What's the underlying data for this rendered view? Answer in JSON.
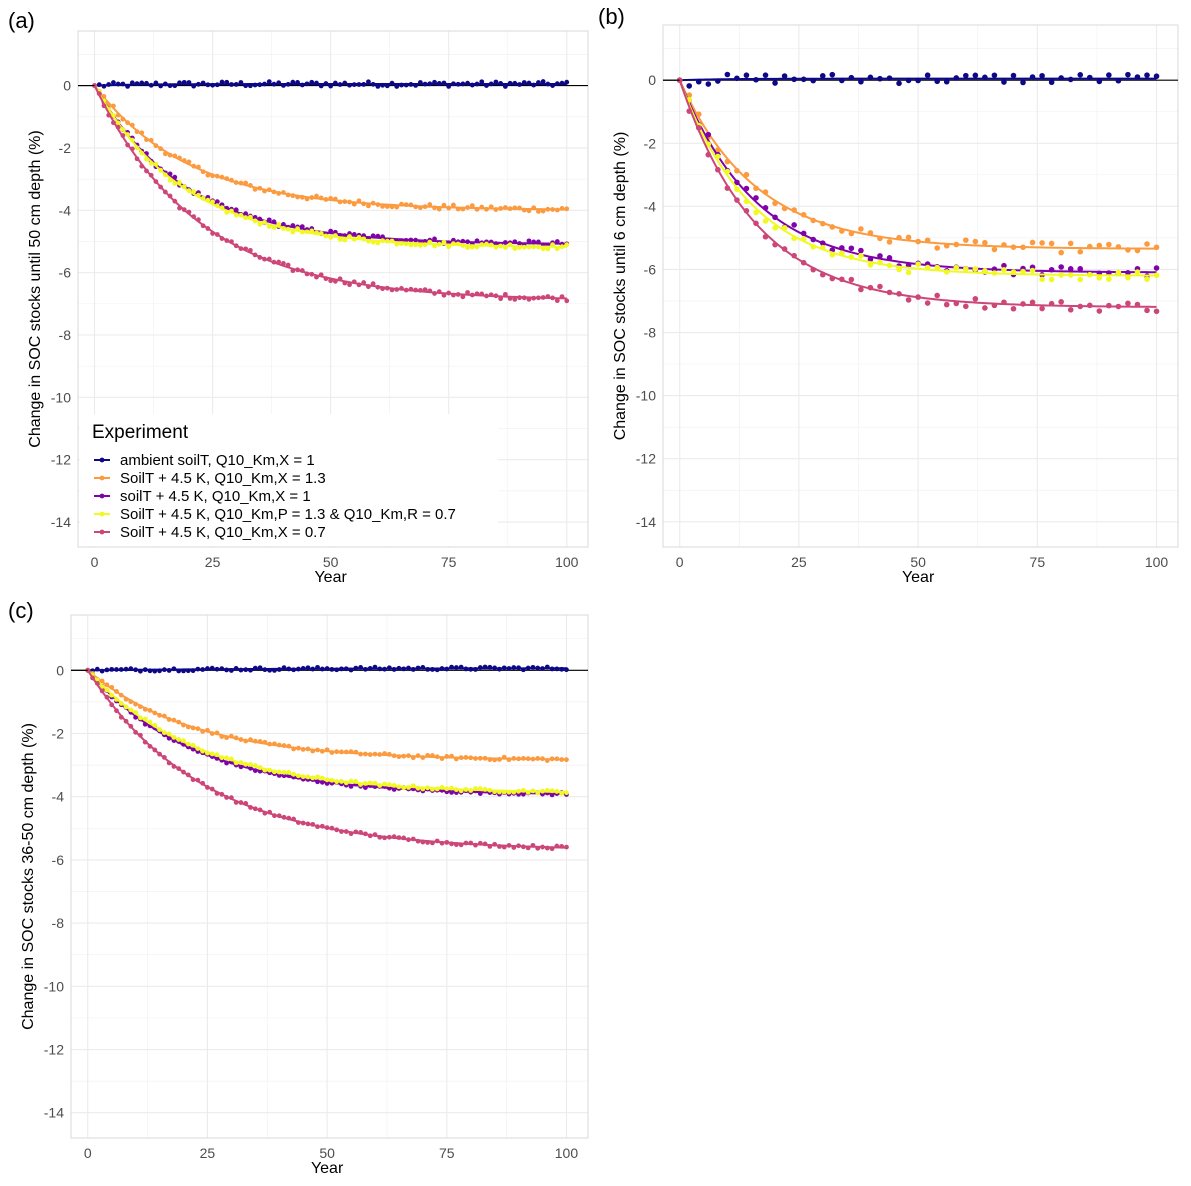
{
  "figure": {
    "legend": {
      "title": "Experiment",
      "entries": [
        {
          "label": "ambient soilT, Q10_Km,X = 1",
          "color": "#0d0887"
        },
        {
          "label": "SoilT + 4.5 K, Q10_Km,X = 1.3",
          "color": "#fb9a3f"
        },
        {
          "label": "soilT + 4.5 K, Q10_Km,X = 1",
          "color": "#7e03a8"
        },
        {
          "label": "SoilT + 4.5 K, Q10_Km,P = 1.3 & Q10_Km,R = 0.7",
          "color": "#f0f921"
        },
        {
          "label": "SoilT + 4.5 K, Q10_Km,X = 0.7",
          "color": "#cc4778"
        }
      ]
    }
  },
  "chart_data": [
    {
      "type": "line",
      "panel": "(a)",
      "title": "",
      "xlabel": "Year",
      "ylabel": "Change in SOC stocks until 50 cm depth (%)",
      "xlim": [
        -3.5,
        104.5
      ],
      "ylim": [
        -14.8,
        1.75
      ],
      "xticks": [
        0,
        25,
        50,
        75,
        100
      ],
      "yticks": [
        0,
        -2,
        -4,
        -6,
        -8,
        -10,
        -12,
        -14
      ],
      "grid": true,
      "legend_position": "bottom-left",
      "hline": 0,
      "point_step_years": 1,
      "series": [
        {
          "name": "ambient soilT, Q10_Km,X = 1",
          "color": "#0d0887",
          "asymptote": 0.05,
          "tau_years": 10,
          "noise": 0.05,
          "summary": {
            "0": 0,
            "25": 0.05,
            "50": 0.05,
            "75": 0.05,
            "100": 0.05
          }
        },
        {
          "name": "SoilT + 4.5 K, Q10_Km,X = 1.3",
          "color": "#fb9a3f",
          "asymptote": -4.0,
          "tau_years": 20,
          "noise": 0.05,
          "summary": {
            "0": 0,
            "25": -2.85,
            "50": -3.7,
            "75": -3.9,
            "100": -4.0
          }
        },
        {
          "name": "soilT + 4.5 K, Q10_Km,X = 1",
          "color": "#7e03a8",
          "asymptote": -5.1,
          "tau_years": 19,
          "noise": 0.05,
          "summary": {
            "0": 0,
            "25": -3.7,
            "50": -4.7,
            "75": -5.0,
            "100": -5.1
          }
        },
        {
          "name": "SoilT + 4.5 K, Q10_Km,P = 1.3 & Q10_Km,R = 0.7",
          "color": "#f0f921",
          "asymptote": -5.2,
          "tau_years": 19,
          "noise": 0.05,
          "summary": {
            "0": 0,
            "25": -3.8,
            "50": -4.8,
            "75": -5.1,
            "100": -5.2
          }
        },
        {
          "name": "SoilT + 4.5 K, Q10_Km,X = 0.7",
          "color": "#cc4778",
          "asymptote": -6.9,
          "tau_years": 22,
          "noise": 0.05,
          "summary": {
            "0": 0,
            "25": -4.6,
            "50": -6.2,
            "75": -6.6,
            "100": -6.8
          }
        }
      ]
    },
    {
      "type": "line",
      "panel": "(b)",
      "title": "",
      "xlabel": "Year",
      "ylabel": "Change in SOC stocks until 6 cm depth (%)",
      "xlim": [
        -3.5,
        104.5
      ],
      "ylim": [
        -14.8,
        1.75
      ],
      "xticks": [
        0,
        25,
        50,
        75,
        100
      ],
      "yticks": [
        0,
        -2,
        -4,
        -6,
        -8,
        -10,
        -12,
        -14
      ],
      "grid": true,
      "hline": 0,
      "point_step_years": 2,
      "series": [
        {
          "name": "ambient soilT, Q10_Km,X = 1",
          "color": "#0d0887",
          "asymptote": 0.05,
          "tau_years": 10,
          "noise": 0.12,
          "summary": {
            "0": 0,
            "25": 0.05,
            "50": 0.05,
            "75": 0.05,
            "100": 0.0
          }
        },
        {
          "name": "SoilT + 4.5 K, Q10_Km,X = 1.3",
          "color": "#fb9a3f",
          "asymptote": -5.35,
          "tau_years": 16,
          "noise": 0.12,
          "summary": {
            "0": 0,
            "25": -4.2,
            "50": -5.1,
            "75": -5.3,
            "100": -5.4
          }
        },
        {
          "name": "soilT + 4.5 K, Q10_Km,X = 1",
          "color": "#7e03a8",
          "asymptote": -6.1,
          "tau_years": 16,
          "noise": 0.12,
          "summary": {
            "0": 0,
            "25": -4.8,
            "50": -5.8,
            "75": -6.0,
            "100": -6.1
          }
        },
        {
          "name": "SoilT + 4.5 K, Q10_Km,P = 1.3 & Q10_Km,R = 0.7",
          "color": "#f0f921",
          "asymptote": -6.2,
          "tau_years": 15,
          "noise": 0.12,
          "summary": {
            "0": 0,
            "25": -5.0,
            "50": -6.0,
            "75": -6.1,
            "100": -6.2
          }
        },
        {
          "name": "SoilT + 4.5 K, Q10_Km,X = 0.7",
          "color": "#cc4778",
          "asymptote": -7.2,
          "tau_years": 16,
          "noise": 0.12,
          "summary": {
            "0": 0,
            "25": -5.6,
            "50": -6.8,
            "75": -7.1,
            "100": -7.2
          }
        }
      ]
    },
    {
      "type": "line",
      "panel": "(c)",
      "title": "",
      "xlabel": "Year",
      "ylabel": "Change in SOC stocks 36-50 cm depth (%)",
      "xlim": [
        -3.5,
        104.5
      ],
      "ylim": [
        -14.8,
        1.75
      ],
      "xticks": [
        0,
        25,
        50,
        75,
        100
      ],
      "yticks": [
        0,
        -2,
        -4,
        -6,
        -8,
        -10,
        -12,
        -14
      ],
      "grid": true,
      "hline": 0,
      "point_step_years": 1,
      "series": [
        {
          "name": "ambient soilT, Q10_Km,X = 1",
          "color": "#0d0887",
          "asymptote": 0.07,
          "tau_years": 40,
          "noise": 0.03,
          "summary": {
            "0": 0,
            "25": 0.03,
            "50": 0.05,
            "75": 0.06,
            "100": 0.07
          }
        },
        {
          "name": "SoilT + 4.5 K, Q10_Km,X = 1.3",
          "color": "#fb9a3f",
          "asymptote": -2.85,
          "tau_years": 22,
          "noise": 0.03,
          "summary": {
            "0": 0,
            "25": -2.2,
            "50": -2.6,
            "75": -2.75,
            "100": -2.8
          }
        },
        {
          "name": "soilT + 4.5 K, Q10_Km,X = 1",
          "color": "#7e03a8",
          "asymptote": -3.95,
          "tau_years": 22,
          "noise": 0.03,
          "summary": {
            "0": 0,
            "25": -3.0,
            "50": -3.6,
            "75": -3.8,
            "100": -3.9
          }
        },
        {
          "name": "SoilT + 4.5 K, Q10_Km,P = 1.3 & Q10_Km,R = 0.7",
          "color": "#f0f921",
          "asymptote": -3.9,
          "tau_years": 23,
          "noise": 0.03,
          "summary": {
            "0": 0,
            "25": -2.9,
            "50": -3.5,
            "75": -3.75,
            "100": -3.85
          }
        },
        {
          "name": "SoilT + 4.5 K, Q10_Km,X = 0.7",
          "color": "#cc4778",
          "asymptote": -5.7,
          "tau_years": 24,
          "noise": 0.03,
          "summary": {
            "0": 0,
            "25": -4.1,
            "50": -5.0,
            "75": -5.4,
            "100": -5.6
          }
        }
      ]
    }
  ]
}
